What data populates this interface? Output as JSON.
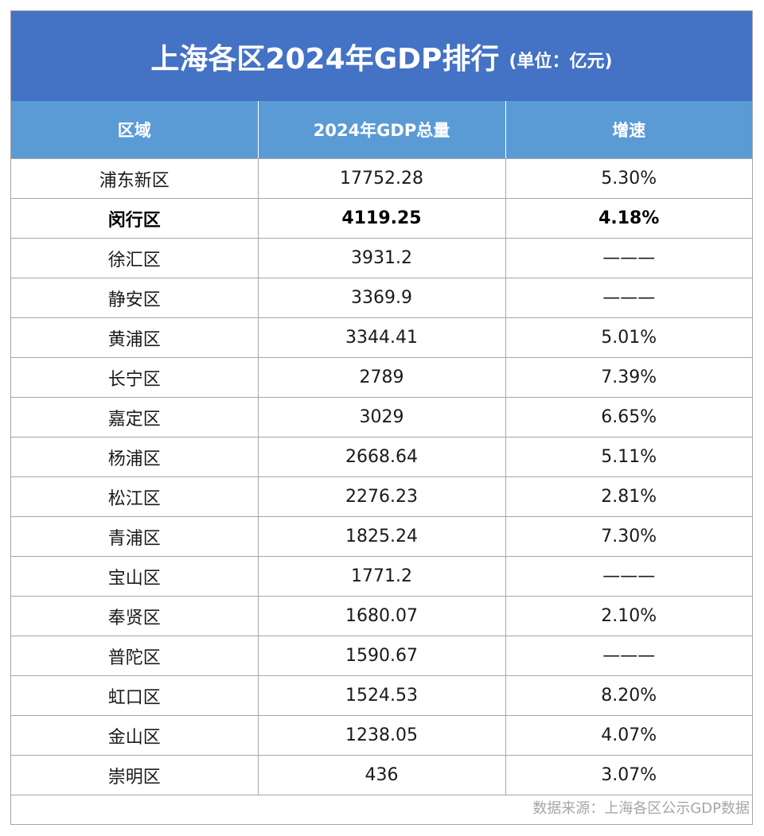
{
  "title": "上海各区2024年GDP排行",
  "unit": "(单位：亿元)",
  "footer": "数据来源：上海各区公示GDP数据",
  "chart_data": {
    "type": "table",
    "columns": [
      "区域",
      "2024年GDP总量",
      "增速"
    ],
    "rows": [
      {
        "district": "浦东新区",
        "gdp": "17752.28",
        "growth": "5.30%",
        "bold": false
      },
      {
        "district": "闵行区",
        "gdp": "4119.25",
        "growth": "4.18%",
        "bold": true
      },
      {
        "district": "徐汇区",
        "gdp": "3931.2",
        "growth": "———",
        "bold": false
      },
      {
        "district": "静安区",
        "gdp": "3369.9",
        "growth": "———",
        "bold": false
      },
      {
        "district": "黄浦区",
        "gdp": "3344.41",
        "growth": "5.01%",
        "bold": false
      },
      {
        "district": "长宁区",
        "gdp": "2789",
        "growth": "7.39%",
        "bold": false
      },
      {
        "district": "嘉定区",
        "gdp": "3029",
        "growth": "6.65%",
        "bold": false
      },
      {
        "district": "杨浦区",
        "gdp": "2668.64",
        "growth": "5.11%",
        "bold": false
      },
      {
        "district": "松江区",
        "gdp": "2276.23",
        "growth": "2.81%",
        "bold": false
      },
      {
        "district": "青浦区",
        "gdp": "1825.24",
        "growth": "7.30%",
        "bold": false
      },
      {
        "district": "宝山区",
        "gdp": "1771.2",
        "growth": "———",
        "bold": false
      },
      {
        "district": "奉贤区",
        "gdp": "1680.07",
        "growth": "2.10%",
        "bold": false
      },
      {
        "district": "普陀区",
        "gdp": "1590.67",
        "growth": "———",
        "bold": false
      },
      {
        "district": "虹口区",
        "gdp": "1524.53",
        "growth": "8.20%",
        "bold": false
      },
      {
        "district": "金山区",
        "gdp": "1238.05",
        "growth": "4.07%",
        "bold": false
      },
      {
        "district": "崇明区",
        "gdp": "436",
        "growth": "3.07%",
        "bold": false
      }
    ]
  },
  "colors": {
    "title_bg": "#4472c4",
    "header_bg": "#5b9bd5",
    "border": "#a6a6a6",
    "footer_text": "#a6a6a6"
  }
}
